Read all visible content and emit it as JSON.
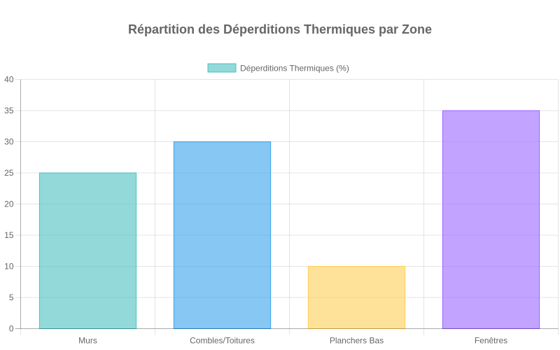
{
  "chart_data": {
    "type": "bar",
    "title": "Répartition des Déperditions Thermiques par Zone",
    "categories": [
      "Murs",
      "Combles/Toitures",
      "Planchers Bas",
      "Fenêtres"
    ],
    "series": [
      {
        "name": "Déperditions Thermiques (%)",
        "values": [
          25,
          30,
          10,
          35
        ]
      }
    ],
    "bar_fill_colors": [
      "rgba(75, 192, 192, 0.6)",
      "rgba(54, 162, 235, 0.6)",
      "rgba(255, 206, 86, 0.6)",
      "rgba(153, 102, 255, 0.6)"
    ],
    "bar_border_colors": [
      "rgba(75, 192, 192, 1)",
      "rgba(54, 162, 235, 1)",
      "rgba(255, 206, 86, 1)",
      "rgba(153, 102, 255, 1)"
    ],
    "xlabel": "",
    "ylabel": "",
    "ylim": [
      0,
      40
    ],
    "yticks": [
      0,
      5,
      10,
      15,
      20,
      25,
      30,
      35,
      40
    ],
    "grid": true,
    "legend_position": "top"
  }
}
